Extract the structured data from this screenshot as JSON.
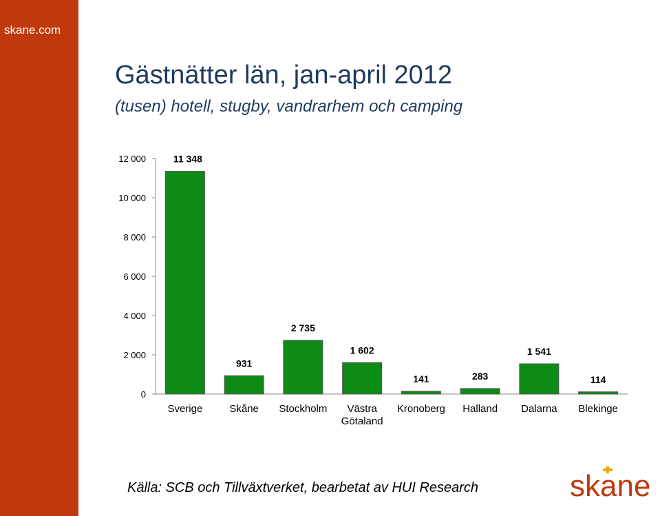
{
  "site": "skane.com",
  "title": "Gästnätter län, jan-april 2012",
  "subtitle": "(tusen) hotell, stugby, vandrarhem och camping",
  "source": "Källa: SCB och Tillväxtverket, bearbetat av HUI Research",
  "logo_text": "skane",
  "colors": {
    "sidebar": "#c0390e",
    "bar": "#0e8a16",
    "title": "#1f3a5f"
  },
  "chart_data": {
    "type": "bar",
    "categories": [
      "Sverige",
      "Skåne",
      "Stockholm",
      "Västra Götaland",
      "Kronoberg",
      "Halland",
      "Dalarna",
      "Blekinge"
    ],
    "values": [
      11348,
      931,
      2735,
      1602,
      141,
      283,
      1541,
      114
    ],
    "data_labels": [
      "11 348",
      "931",
      "2 735",
      "1 602",
      "141",
      "283",
      "1 541",
      "114"
    ],
    "yticks": [
      0,
      2000,
      4000,
      6000,
      8000,
      10000,
      12000
    ],
    "ytick_labels": [
      "0",
      "2 000",
      "4 000",
      "6 000",
      "8 000",
      "10 000",
      "12 000"
    ],
    "ylim": [
      0,
      12000
    ],
    "grid": false,
    "legend": "none"
  }
}
